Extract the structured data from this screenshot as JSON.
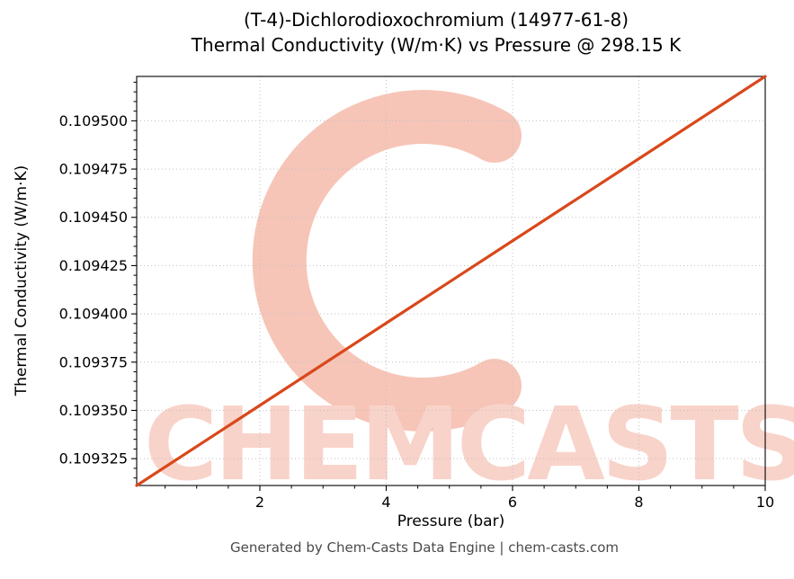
{
  "title": {
    "line1": "(T-4)-Dichlorodioxochromium (14977-61-8)",
    "line2": "Thermal Conductivity (W/m·K) vs Pressure @ 298.15 K"
  },
  "axes": {
    "x_label": "Pressure (bar)",
    "y_label": "Thermal Conductivity (W/m·K)"
  },
  "footer": "Generated by Chem-Casts Data Engine | chem-casts.com",
  "watermark": {
    "text": "CHEMCASTS",
    "text_color": "#f8d3ca",
    "arc_color": "#f6c5b8"
  },
  "chart_data": {
    "type": "line",
    "title": "(T-4)-Dichlorodioxochromium (14977-61-8) Thermal Conductivity (W/m·K) vs Pressure @ 298.15 K",
    "xlabel": "Pressure (bar)",
    "ylabel": "Thermal Conductivity (W/m·K)",
    "x": [
      0.05,
      2,
      4,
      6,
      8,
      10
    ],
    "y": [
      0.1093111,
      0.1093526,
      0.1093952,
      0.1094378,
      0.1094804,
      0.109523
    ],
    "xlim": [
      0.05,
      10
    ],
    "ylim": [
      0.1093111,
      0.109523
    ],
    "x_ticks": [
      2,
      4,
      6,
      8,
      10
    ],
    "y_ticks": [
      0.109325,
      0.10935,
      0.109375,
      0.1094,
      0.109425,
      0.10945,
      0.109475,
      0.1095
    ],
    "x_minor_step": 0.5,
    "y_minor_step": 5e-06,
    "grid": true,
    "legend": "none",
    "line_color": "#d9481b",
    "grid_color": "#c0c0c0",
    "temperature_condition_K": "298.15"
  }
}
